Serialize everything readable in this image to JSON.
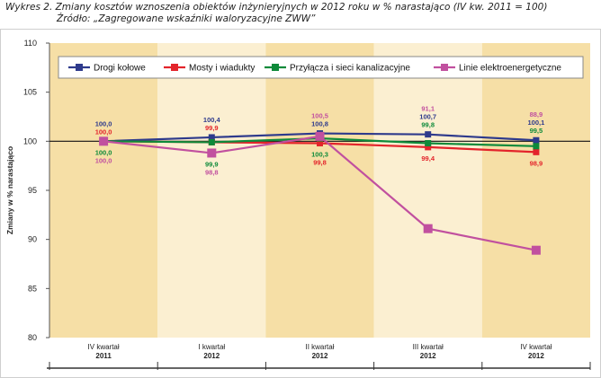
{
  "caption": {
    "line1": "Wykres 2. Zmiany kosztów wznoszenia obiektów inżynieryjnych w 2012 roku w % narastająco (IV kw. 2011 = 100)",
    "line2": "Źródło: „Zagregowane wskaźniki waloryzacyjne ZWW”"
  },
  "chart_data": {
    "type": "line",
    "ylabel": "Zmiany w % narastająco",
    "xlabel": "",
    "ylim": [
      80,
      110
    ],
    "yticks": [
      80,
      85,
      90,
      95,
      100,
      105,
      110
    ],
    "categories": [
      {
        "line1": "IV kwartał",
        "line2": "2011"
      },
      {
        "line1": "I kwartał",
        "line2": "2012"
      },
      {
        "line1": "II kwartał",
        "line2": "2012"
      },
      {
        "line1": "III kwartał",
        "line2": "2012"
      },
      {
        "line1": "IV kwartał",
        "line2": "2012"
      }
    ],
    "legend_position": "top",
    "series": [
      {
        "name": "Drogi kołowe",
        "color": "#2e3a8c",
        "values": [
          100.0,
          100.4,
          100.8,
          100.7,
          100.1
        ],
        "labels": [
          "100,0",
          "100,4",
          "100,8",
          "100,7",
          "100,1"
        ],
        "label_pos": [
          "above",
          "above",
          "above",
          "above",
          "above"
        ]
      },
      {
        "name": "Mosty i wiadukty",
        "color": "#e3242b",
        "values": [
          100.0,
          99.9,
          99.8,
          99.4,
          98.9
        ],
        "labels": [
          "100,0",
          "99,9",
          "99,8",
          "99,4",
          "98,9"
        ],
        "label_pos": [
          "above",
          "above",
          "below",
          "below",
          "below"
        ]
      },
      {
        "name": "Przyłącza i sieci kanalizacyjne",
        "color": "#0e8a3a",
        "values": [
          100.0,
          99.9,
          100.3,
          99.8,
          99.5
        ],
        "labels": [
          "100,0",
          "99,9",
          "100,3",
          "99,8",
          "99,5"
        ],
        "label_pos": [
          "below",
          "below",
          "below",
          "above",
          "above"
        ]
      },
      {
        "name": "Linie elektroenergetyczne",
        "color": "#c1509f",
        "values": [
          100.0,
          98.8,
          100.5,
          91.1,
          88.9
        ],
        "labels": [
          "100,0",
          "98,8",
          "100,5",
          "91,1",
          "88,9"
        ],
        "label_pos": [
          "below",
          "below",
          "above",
          "above",
          "above"
        ]
      }
    ],
    "band_colors": [
      "#f6dfa6",
      "#fbefd1"
    ],
    "grid": false
  }
}
